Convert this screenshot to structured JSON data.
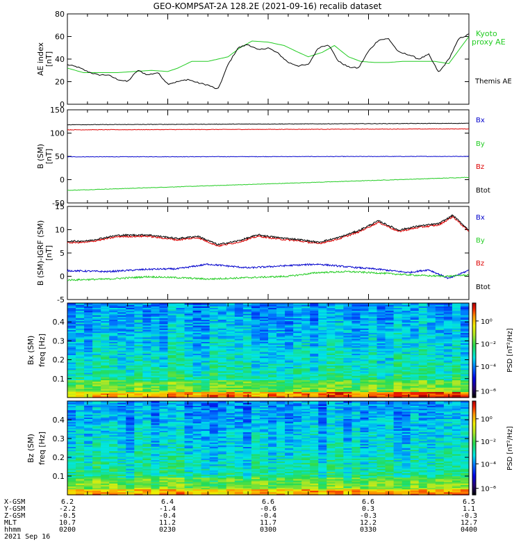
{
  "title": "GEO-KOMPSAT-2A 128.2E (2021-09-16) recalib dataset",
  "chart_data": [
    {
      "type": "line",
      "panel": "ae_index",
      "ylabel": "AE index [nT]",
      "ylim": [
        0,
        80
      ],
      "yticks": [
        0,
        20,
        40,
        60,
        80
      ],
      "x_range_hhmm": [
        "0200",
        "0400"
      ],
      "series": [
        {
          "name": "Kyoto proxy AE",
          "color": "#22cc22",
          "x_hours": [
            2.0,
            2.08,
            2.17,
            2.25,
            2.33,
            2.42,
            2.5,
            2.55,
            2.62,
            2.7,
            2.75,
            2.8,
            2.86,
            2.92,
            3.0,
            3.08,
            3.15,
            3.2,
            3.27,
            3.33,
            3.4,
            3.46,
            3.53,
            3.6,
            3.67,
            3.75,
            3.83,
            3.9,
            3.95,
            4.0
          ],
          "values": [
            32,
            28,
            28,
            28,
            29,
            30,
            29,
            32,
            38,
            38,
            40,
            42,
            50,
            56,
            55,
            52,
            46,
            42,
            46,
            52,
            42,
            38,
            37,
            37,
            38,
            38,
            38,
            36,
            48,
            60
          ]
        },
        {
          "name": "Themis AE",
          "color": "#000000",
          "x_hours": [
            2.0,
            2.05,
            2.1,
            2.15,
            2.2,
            2.25,
            2.3,
            2.35,
            2.4,
            2.45,
            2.5,
            2.55,
            2.6,
            2.65,
            2.7,
            2.75,
            2.8,
            2.85,
            2.9,
            2.95,
            3.0,
            3.05,
            3.1,
            3.15,
            3.2,
            3.25,
            3.3,
            3.35,
            3.4,
            3.45,
            3.5,
            3.55,
            3.6,
            3.65,
            3.7,
            3.75,
            3.8,
            3.85,
            3.9,
            3.95,
            4.0
          ],
          "values": [
            35,
            33,
            29,
            26,
            26,
            22,
            20,
            30,
            26,
            28,
            18,
            20,
            22,
            19,
            17,
            13,
            35,
            50,
            53,
            48,
            50,
            45,
            37,
            34,
            35,
            50,
            53,
            38,
            33,
            32,
            47,
            57,
            58,
            46,
            44,
            40,
            44,
            28,
            40,
            58,
            62
          ]
        }
      ]
    },
    {
      "type": "line",
      "panel": "b_sm",
      "ylabel": "B (SM) [nT]",
      "ylim": [
        -50,
        150
      ],
      "yticks": [
        -50,
        0,
        50,
        100,
        150
      ],
      "series": [
        {
          "name": "Bx",
          "color": "#0000cc",
          "x_hours": [
            2.0,
            4.0
          ],
          "values": [
            49,
            50
          ]
        },
        {
          "name": "By",
          "color": "#22cc22",
          "x_hours": [
            2.0,
            4.0
          ],
          "values": [
            -23,
            5
          ]
        },
        {
          "name": "Bz",
          "color": "#dd0000",
          "x_hours": [
            2.0,
            4.0
          ],
          "values": [
            107,
            109
          ]
        },
        {
          "name": "Btot",
          "color": "#000000",
          "x_hours": [
            2.0,
            4.0
          ],
          "values": [
            118,
            121
          ]
        }
      ],
      "legend_placement": "right"
    },
    {
      "type": "line",
      "panel": "b_minus_igrf",
      "ylabel": "B (SM)-IGRF (SM) [nT]",
      "ylim": [
        -5,
        15
      ],
      "yticks": [
        -5,
        0,
        5,
        10,
        15
      ],
      "series": [
        {
          "name": "Bx",
          "color": "#0000cc",
          "x_hours": [
            2.0,
            2.2,
            2.4,
            2.55,
            2.7,
            2.9,
            3.1,
            3.25,
            3.4,
            3.55,
            3.7,
            3.8,
            3.9,
            4.0
          ],
          "values": [
            1.2,
            1.0,
            1.5,
            1.6,
            2.6,
            1.8,
            2.3,
            2.6,
            2.0,
            1.5,
            0.8,
            1.4,
            -0.5,
            1.3
          ]
        },
        {
          "name": "By",
          "color": "#22cc22",
          "x_hours": [
            2.0,
            2.2,
            2.4,
            2.55,
            2.7,
            2.9,
            3.1,
            3.25,
            3.4,
            3.55,
            3.7,
            3.8,
            3.9,
            4.0
          ],
          "values": [
            -0.8,
            -0.6,
            -0.1,
            -0.3,
            -0.6,
            -0.3,
            0.0,
            0.8,
            1.0,
            0.7,
            0.3,
            0.1,
            0.0,
            0.3
          ]
        },
        {
          "name": "Bz",
          "color": "#dd0000",
          "x_hours": [
            2.0,
            2.1,
            2.25,
            2.4,
            2.55,
            2.65,
            2.75,
            2.85,
            2.95,
            3.05,
            3.15,
            3.25,
            3.35,
            3.45,
            3.55,
            3.65,
            3.75,
            3.85,
            3.92,
            4.0
          ],
          "values": [
            7.2,
            7.3,
            8.5,
            8.6,
            7.8,
            8.3,
            6.5,
            7.3,
            8.6,
            8.0,
            7.6,
            7.0,
            8.0,
            9.5,
            11.6,
            9.6,
            10.5,
            11.0,
            12.8,
            9.6
          ]
        },
        {
          "name": "Btot",
          "color": "#000000",
          "x_hours": [
            2.0,
            2.1,
            2.25,
            2.4,
            2.55,
            2.65,
            2.75,
            2.85,
            2.95,
            3.05,
            3.15,
            3.25,
            3.35,
            3.45,
            3.55,
            3.65,
            3.75,
            3.85,
            3.92,
            4.0
          ],
          "values": [
            7.5,
            7.6,
            8.8,
            8.9,
            8.1,
            8.6,
            6.8,
            7.6,
            8.9,
            8.3,
            7.9,
            7.3,
            8.3,
            9.8,
            11.9,
            9.9,
            10.8,
            11.3,
            13.1,
            9.9
          ]
        }
      ],
      "legend_placement": "right"
    },
    {
      "type": "heatmap",
      "panel": "bx_psd",
      "ylabel": "Bx (SM) freq [Hz]",
      "yticks": [
        0.1,
        0.2,
        0.3,
        0.4
      ],
      "ylim": [
        0,
        0.5
      ],
      "colorbar_label": "PSD [nT²/Hz]",
      "colorbar_ticks": [
        "10⁰",
        "10⁻²",
        "10⁻⁴",
        "10⁻⁶"
      ]
    },
    {
      "type": "heatmap",
      "panel": "bz_psd",
      "ylabel": "Bz (SM) freq [Hz]",
      "yticks": [
        0.1,
        0.2,
        0.3,
        0.4
      ],
      "ylim": [
        0,
        0.5
      ],
      "colorbar_label": "PSD [nT²/Hz]",
      "colorbar_ticks": [
        "10⁰",
        "10⁻²",
        "10⁻⁴",
        "10⁻⁶"
      ]
    }
  ],
  "labels": {
    "ae_ylabel_1": "AE index",
    "ae_ylabel_2": "[nT]",
    "b_ylabel_1": "B (SM)",
    "b_ylabel_2": "[nT]",
    "d_ylabel_1": "B (SM)-IGRF (SM)",
    "d_ylabel_2": "[nT]",
    "bx_ylabel_1": "Bx (SM)",
    "bx_ylabel_2": "freq [Hz]",
    "bz_ylabel_1": "Bz (SM)",
    "bz_ylabel_2": "freq [Hz]",
    "psd_label": "PSD [nT²/Hz]",
    "kyoto_1": "Kyoto",
    "kyoto_2": "proxy AE",
    "themis": "Themis AE",
    "bx": "Bx",
    "by": "By",
    "bz": "Bz",
    "btot": "Btot"
  },
  "ephemeris": {
    "row_labels": [
      "X-GSM",
      "Y-GSM",
      "Z-GSM",
      "MLT",
      "hhmm"
    ],
    "columns": [
      {
        "values": [
          "6.2",
          "-2.2",
          "-0.5",
          "10.7",
          "0200"
        ]
      },
      {
        "values": [
          "6.4",
          "-1.4",
          "-0.4",
          "11.2",
          "0230"
        ]
      },
      {
        "values": [
          "6.6",
          "-0.6",
          "-0.4",
          "11.7",
          "0300"
        ]
      },
      {
        "values": [
          "6.6",
          "0.3",
          "-0.3",
          "12.2",
          "0330"
        ]
      },
      {
        "values": [
          "6.5",
          "1.1",
          "-0.3",
          "12.7",
          "0400"
        ]
      }
    ],
    "date": "2021 Sep 16"
  }
}
